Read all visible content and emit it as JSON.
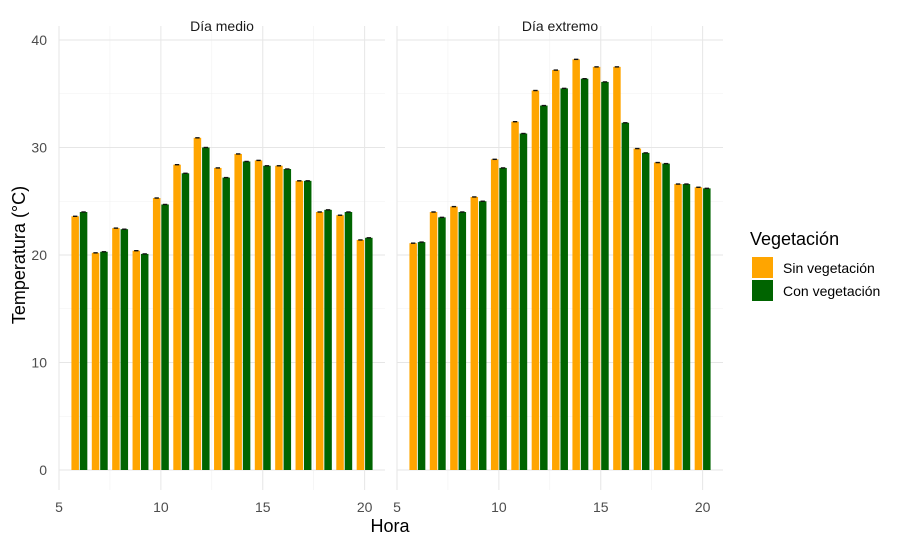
{
  "chart_data": {
    "type": "bar",
    "xlabel": "Hora",
    "ylabel": "Temperatura (°C)",
    "xlim": [
      5,
      21
    ],
    "ylim": [
      0,
      40
    ],
    "x_ticks": [
      5,
      10,
      15,
      20
    ],
    "y_ticks": [
      0,
      10,
      20,
      30,
      40
    ],
    "grid": true,
    "legend": {
      "title": "Vegetación",
      "position": "right",
      "entries": [
        {
          "label": "Sin vegetación",
          "color": "#FFA500"
        },
        {
          "label": "Con vegetación",
          "color": "#006400"
        }
      ]
    },
    "panels": [
      {
        "title": "Día medio",
        "hours": [
          6,
          7,
          8,
          9,
          10,
          11,
          12,
          13,
          14,
          15,
          16,
          17,
          18,
          19,
          20
        ],
        "series": [
          {
            "name": "Sin vegetación",
            "color": "#FFA500",
            "values": [
              23.6,
              20.2,
              22.5,
              20.4,
              25.3,
              28.4,
              30.9,
              28.1,
              29.4,
              28.8,
              28.3,
              26.9,
              24.0,
              23.7,
              21.4
            ]
          },
          {
            "name": "Con vegetación",
            "color": "#006400",
            "values": [
              24.0,
              20.3,
              22.4,
              20.1,
              24.7,
              27.6,
              30.0,
              27.2,
              28.7,
              28.3,
              28.0,
              26.9,
              24.2,
              24.0,
              21.6
            ]
          }
        ]
      },
      {
        "title": "Día extremo",
        "hours": [
          6,
          7,
          8,
          9,
          10,
          11,
          12,
          13,
          14,
          15,
          16,
          17,
          18,
          19,
          20
        ],
        "series": [
          {
            "name": "Sin vegetación",
            "color": "#FFA500",
            "values": [
              21.1,
              24.0,
              24.5,
              25.4,
              28.9,
              32.4,
              35.3,
              37.2,
              38.2,
              37.5,
              37.5,
              29.9,
              28.6,
              26.6,
              26.3
            ]
          },
          {
            "name": "Con vegetación",
            "color": "#006400",
            "values": [
              21.2,
              23.5,
              24.0,
              25.0,
              28.1,
              31.3,
              33.9,
              35.5,
              36.4,
              36.1,
              32.3,
              29.5,
              28.5,
              26.6,
              26.2
            ]
          }
        ]
      }
    ]
  }
}
